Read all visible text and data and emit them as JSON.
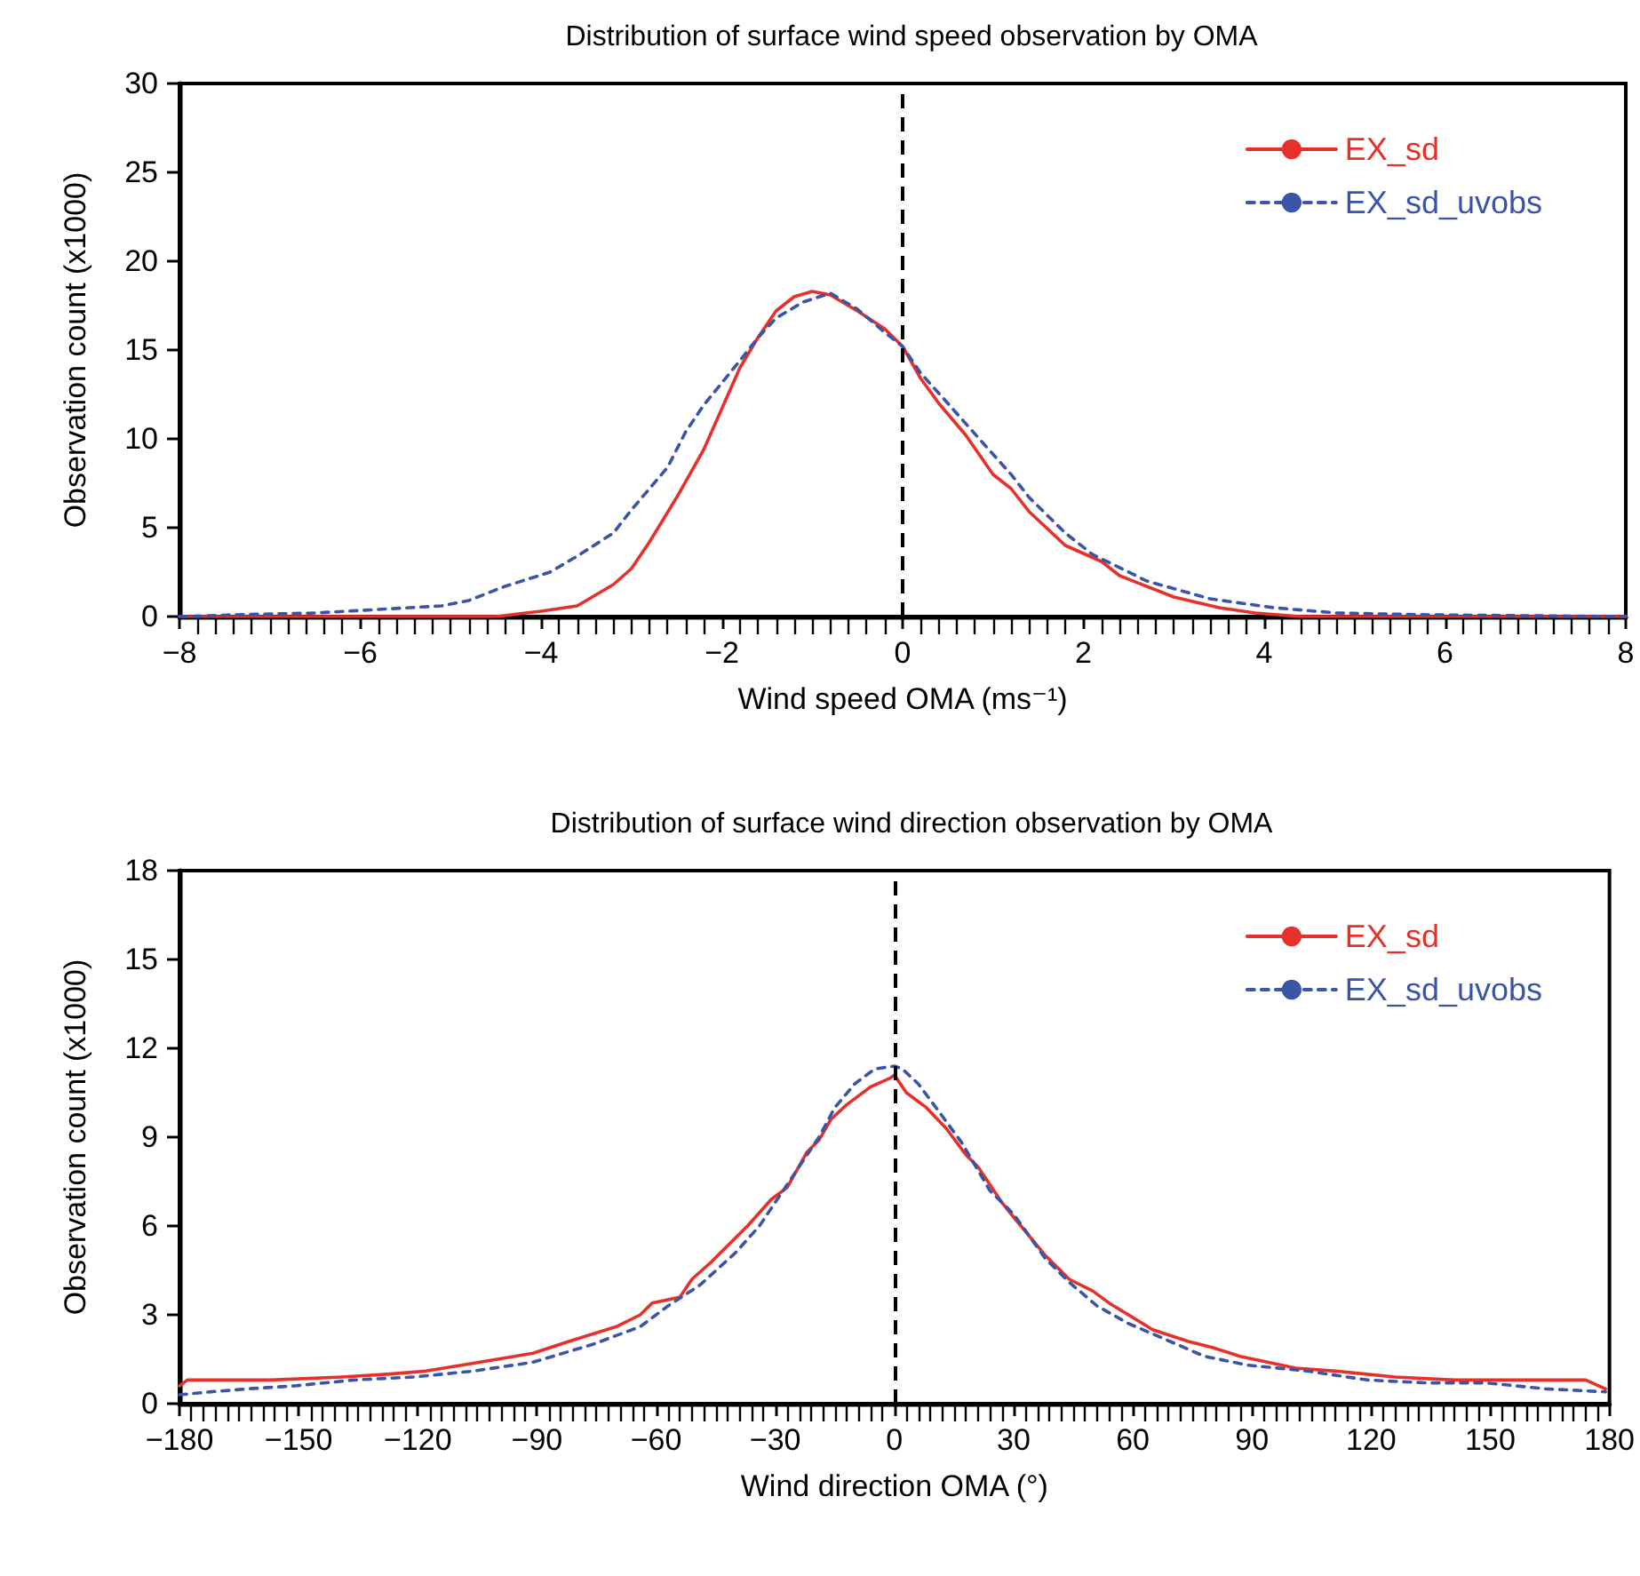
{
  "chart_data": [
    {
      "type": "line",
      "title": "Distribution of surface wind speed observation by OMA",
      "xlabel": "Wind speed OMA (ms⁻¹)",
      "ylabel": "Observation count (x1000)",
      "xlim": [
        -8,
        8
      ],
      "xticks": [
        -8,
        -6,
        -4,
        -2,
        0,
        2,
        4,
        6,
        8
      ],
      "ylim": [
        0,
        30
      ],
      "yticks": [
        0,
        5,
        10,
        15,
        20,
        25,
        30
      ],
      "grid": false,
      "legend": "top right",
      "ref_lines": [
        {
          "axis": "x",
          "value": 0,
          "color": "#000000",
          "line_style": "dashed"
        }
      ],
      "series": [
        {
          "name": "EX_sd",
          "color": "#e8302a",
          "line_style": "solid",
          "x": [
            -8,
            -4.5,
            -4.0,
            -3.6,
            -3.2,
            -3.0,
            -2.8,
            -2.5,
            -2.2,
            -2.0,
            -1.8,
            -1.6,
            -1.4,
            -1.2,
            -1.0,
            -0.8,
            -0.5,
            -0.2,
            0,
            0.2,
            0.4,
            0.7,
            1.0,
            1.2,
            1.4,
            1.8,
            2.2,
            2.4,
            3.0,
            3.5,
            3.9,
            4.4,
            8
          ],
          "values": [
            0,
            0,
            0.3,
            0.6,
            1.8,
            2.7,
            4.2,
            6.7,
            9.4,
            11.7,
            14.0,
            15.7,
            17.2,
            18.0,
            18.3,
            18.1,
            17.2,
            16.2,
            15.2,
            13.4,
            12.0,
            10.2,
            8.0,
            7.2,
            5.9,
            4.0,
            3.1,
            2.3,
            1.1,
            0.5,
            0.2,
            0,
            0
          ]
        },
        {
          "name": "EX_sd_uvobs",
          "color": "#3a55a8",
          "line_style": "dashed",
          "x": [
            -8,
            -7.4,
            -6.5,
            -5.8,
            -5.1,
            -4.8,
            -4.4,
            -3.9,
            -3.6,
            -3.2,
            -3.0,
            -2.6,
            -2.4,
            -2.2,
            -1.8,
            -1.6,
            -1.4,
            -1.1,
            -0.8,
            -0.5,
            -0.2,
            0,
            0.2,
            0.5,
            0.9,
            1.2,
            1.4,
            1.8,
            2.1,
            2.7,
            3.4,
            4.1,
            4.8,
            5.8,
            8
          ],
          "values": [
            0,
            0.1,
            0.2,
            0.4,
            0.6,
            0.9,
            1.7,
            2.5,
            3.4,
            4.7,
            6.0,
            8.4,
            10.4,
            11.9,
            14.4,
            15.7,
            16.8,
            17.7,
            18.2,
            17.3,
            16.0,
            15.2,
            13.7,
            12.0,
            9.7,
            8.0,
            6.7,
            4.7,
            3.5,
            2.0,
            1.0,
            0.5,
            0.2,
            0.1,
            0
          ]
        }
      ]
    },
    {
      "type": "line",
      "title": "Distribution of surface wind direction observation by OMA",
      "xlabel": "Wind direction OMA (°)",
      "ylabel": "Observation count (x1000)",
      "xlim": [
        -180,
        180
      ],
      "xticks": [
        -180,
        -150,
        -120,
        -90,
        -60,
        -30,
        0,
        30,
        60,
        90,
        120,
        150,
        180
      ],
      "ylim": [
        0,
        18
      ],
      "yticks": [
        0,
        3,
        6,
        9,
        12,
        15,
        18
      ],
      "grid": false,
      "legend": "top right",
      "ref_lines": [
        {
          "axis": "x",
          "value": 0,
          "color": "#000000",
          "line_style": "dashed"
        }
      ],
      "series": [
        {
          "name": "EX_sd",
          "color": "#e8302a",
          "line_style": "solid",
          "x": [
            -180,
            -178,
            -166,
            -157,
            -139,
            -127,
            -118,
            -109,
            -100,
            -91,
            -82,
            -70,
            -64,
            -61,
            -54,
            -51,
            -46,
            -37,
            -31,
            -27,
            -22,
            -19,
            -16,
            -12,
            -6,
            -1,
            0,
            3,
            6,
            8,
            13,
            18,
            21,
            27,
            30,
            38,
            44,
            50,
            54,
            65,
            74,
            80,
            87,
            101,
            111,
            126,
            141,
            156,
            174,
            179
          ],
          "values": [
            0.6,
            0.8,
            0.8,
            0.8,
            0.9,
            1.0,
            1.1,
            1.3,
            1.5,
            1.7,
            2.1,
            2.6,
            3.0,
            3.4,
            3.6,
            4.2,
            4.8,
            6.0,
            6.9,
            7.3,
            8.5,
            8.9,
            9.6,
            10.1,
            10.7,
            11.0,
            11.1,
            10.5,
            10.2,
            10.0,
            9.3,
            8.4,
            8.0,
            6.8,
            6.3,
            5.0,
            4.2,
            3.8,
            3.4,
            2.5,
            2.1,
            1.9,
            1.6,
            1.2,
            1.1,
            0.9,
            0.8,
            0.8,
            0.8,
            0.5
          ]
        },
        {
          "name": "EX_sd_uvobs",
          "color": "#3a55a8",
          "line_style": "dashed",
          "x": [
            -180,
            -172,
            -163,
            -151,
            -136,
            -121,
            -106,
            -91,
            -76,
            -64,
            -57,
            -49,
            -40,
            -34,
            -25,
            -19,
            -15,
            -10,
            -5,
            0,
            2,
            6,
            11,
            17,
            24,
            30,
            38,
            44,
            51,
            59,
            66,
            78,
            89,
            104,
            119,
            134,
            149,
            164,
            179
          ],
          "values": [
            0.3,
            0.4,
            0.5,
            0.6,
            0.8,
            0.9,
            1.1,
            1.4,
            2.0,
            2.6,
            3.3,
            4.0,
            5.1,
            6.0,
            7.8,
            9.0,
            10.0,
            10.8,
            11.3,
            11.4,
            11.3,
            10.8,
            9.9,
            8.8,
            7.2,
            6.4,
            4.9,
            4.1,
            3.3,
            2.7,
            2.3,
            1.6,
            1.3,
            1.1,
            0.8,
            0.7,
            0.7,
            0.5,
            0.4
          ]
        }
      ]
    }
  ]
}
